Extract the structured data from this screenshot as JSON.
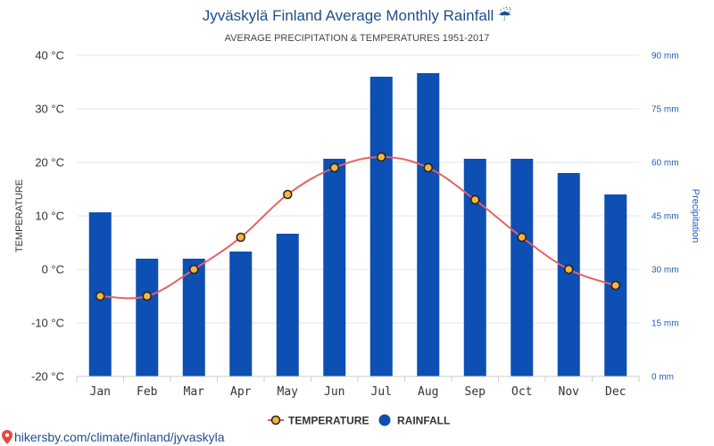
{
  "chart_data": {
    "type": "bar-line",
    "title": "Jyväskylä Finland Average Monthly Rainfall ☔",
    "subtitle": "AVERAGE PRECIPITATION & TEMPERATURES 1951-2017",
    "categories": [
      "Jan",
      "Feb",
      "Mar",
      "Apr",
      "May",
      "Jun",
      "Jul",
      "Aug",
      "Sep",
      "Oct",
      "Nov",
      "Dec"
    ],
    "series": [
      {
        "name": "RAINFALL",
        "type": "bar",
        "axis": "right",
        "color": "#0d4fb3",
        "values": [
          46,
          33,
          33,
          35,
          40,
          61,
          84,
          85,
          61,
          61,
          57,
          51
        ]
      },
      {
        "name": "TEMPERATURE",
        "type": "line",
        "axis": "left",
        "color": "#e86060",
        "marker_fill": "#f7b53b",
        "values": [
          -5,
          -5,
          0,
          6,
          14,
          19,
          21,
          19,
          13,
          6,
          0,
          -3
        ]
      }
    ],
    "yaxis_left": {
      "label": "TEMPERATURE",
      "min": -20,
      "max": 40,
      "ticks": [
        -20,
        -10,
        0,
        10,
        20,
        30,
        40
      ],
      "tick_labels": [
        "-20 °C",
        "-10 °C",
        "0 °C",
        "10 °C",
        "20 °C",
        "30 °C",
        "40 °C"
      ]
    },
    "yaxis_right": {
      "label": "Precipitation",
      "min": 0,
      "max": 90,
      "ticks": [
        0,
        15,
        30,
        45,
        60,
        75,
        90
      ],
      "tick_labels": [
        "0 mm",
        "15 mm",
        "30 mm",
        "45 mm",
        "60 mm",
        "75 mm",
        "90 mm"
      ]
    },
    "grid": true,
    "legend": {
      "position": "bottom-center",
      "items": [
        "TEMPERATURE",
        "RAINFALL"
      ]
    }
  },
  "footer": {
    "link_text": "hikersby.com/climate/finland/jyvaskyla"
  },
  "colors": {
    "title": "#1f4e8c",
    "right_axis": "#1f5fbf",
    "grid": "#e6e6e6"
  },
  "icons": {
    "footer": "location-pin-icon"
  }
}
